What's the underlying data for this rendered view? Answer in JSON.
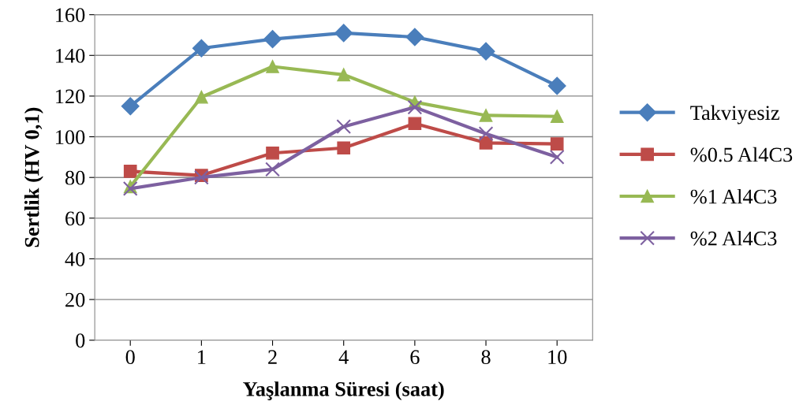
{
  "chart_data": {
    "type": "line",
    "xlabel": "Yaşlanma Süresi (saat)",
    "ylabel": "Sertlik (HV 0,1)",
    "categories": [
      "0",
      "1",
      "2",
      "4",
      "6",
      "8",
      "10"
    ],
    "series": [
      {
        "name": "Takviyesiz",
        "color": "#4a7ebb",
        "marker": "diamond",
        "values": [
          115,
          143.5,
          148,
          151,
          149,
          142,
          125
        ]
      },
      {
        "name": "%0.5 Al4C3",
        "color": "#be4b48",
        "marker": "square",
        "values": [
          83,
          81,
          92,
          94.5,
          106.5,
          97,
          96.5
        ]
      },
      {
        "name": "%1 Al4C3",
        "color": "#98b954",
        "marker": "triangle",
        "values": [
          75.5,
          119.5,
          134.5,
          130.5,
          117,
          110.5,
          110
        ]
      },
      {
        "name": "%2 Al4C3",
        "color": "#7d60a0",
        "marker": "cross",
        "values": [
          74.5,
          80,
          84,
          105,
          114.5,
          101.5,
          90
        ]
      }
    ],
    "ylim": [
      0,
      160
    ],
    "yticks": [
      0,
      20,
      40,
      60,
      80,
      100,
      120,
      140,
      160
    ],
    "grid": "y",
    "legend": "right"
  }
}
